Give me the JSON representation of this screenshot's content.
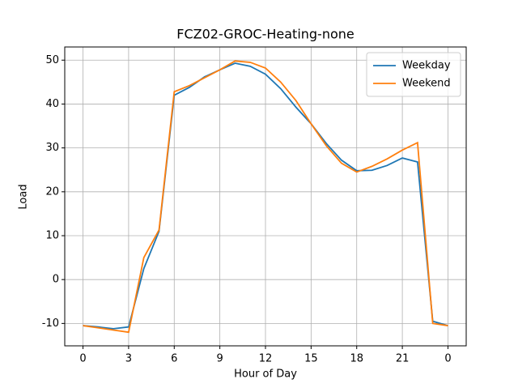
{
  "chart_data": {
    "type": "line",
    "title": "FCZ02-GROC-Heating-none",
    "x_label": "Hour of Day",
    "y_label": "Load",
    "x": [
      0,
      1,
      2,
      3,
      4,
      5,
      6,
      7,
      8,
      9,
      10,
      11,
      12,
      13,
      14,
      15,
      16,
      17,
      18,
      19,
      20,
      21,
      22,
      23,
      24
    ],
    "series": [
      {
        "name": "Weekday",
        "color": "#1f77b4",
        "values": [
          -10.5,
          -10.8,
          -11.2,
          -10.8,
          2.5,
          11,
          42,
          43.8,
          46.2,
          47.8,
          49.3,
          48.6,
          46.8,
          43.5,
          39.3,
          35.5,
          31,
          27.2,
          24.8,
          24.9,
          26,
          27.7,
          26.8,
          -9.5,
          -10.5
        ]
      },
      {
        "name": "Weekend",
        "color": "#ff7f0e",
        "values": [
          -10.5,
          -11,
          -11.5,
          -12,
          5,
          11.3,
          42.8,
          44.2,
          46,
          47.8,
          49.8,
          49.5,
          48.2,
          45,
          40.8,
          35.5,
          30.5,
          26.5,
          24.5,
          25.8,
          27.5,
          29.5,
          31.2,
          -10,
          -10.5
        ]
      }
    ],
    "xlim": [
      -1.2,
      25.2
    ],
    "ylim": [
      -15.1,
      53
    ],
    "xticks": [
      0,
      3,
      6,
      9,
      12,
      15,
      18,
      21,
      {
        "value": 24,
        "label": "0"
      }
    ],
    "yticks": [
      -10,
      0,
      10,
      20,
      30,
      40,
      50
    ],
    "grid": true,
    "legend": "upper right"
  }
}
